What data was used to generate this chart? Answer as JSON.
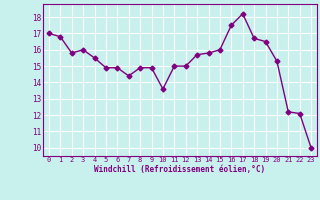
{
  "x": [
    0,
    1,
    2,
    3,
    4,
    5,
    6,
    7,
    8,
    9,
    10,
    11,
    12,
    13,
    14,
    15,
    16,
    17,
    18,
    19,
    20,
    21,
    22,
    23
  ],
  "y": [
    17.0,
    16.8,
    15.8,
    16.0,
    15.5,
    14.9,
    14.9,
    14.4,
    14.9,
    14.9,
    13.6,
    15.0,
    15.0,
    15.7,
    15.8,
    16.0,
    17.5,
    18.2,
    16.7,
    16.5,
    15.3,
    12.2,
    12.1,
    10.0
  ],
  "line_color": "#800080",
  "marker": "D",
  "marker_size": 2.5,
  "bg_color": "#c8f0ec",
  "grid_color": "#ffffff",
  "xlabel": "Windchill (Refroidissement éolien,°C)",
  "xlabel_color": "#800080",
  "tick_color": "#800080",
  "ylim": [
    9.5,
    18.8
  ],
  "xlim": [
    -0.5,
    23.5
  ],
  "yticks": [
    10,
    11,
    12,
    13,
    14,
    15,
    16,
    17,
    18
  ],
  "xticks": [
    0,
    1,
    2,
    3,
    4,
    5,
    6,
    7,
    8,
    9,
    10,
    11,
    12,
    13,
    14,
    15,
    16,
    17,
    18,
    19,
    20,
    21,
    22,
    23
  ],
  "figsize": [
    3.2,
    2.0
  ],
  "dpi": 100
}
